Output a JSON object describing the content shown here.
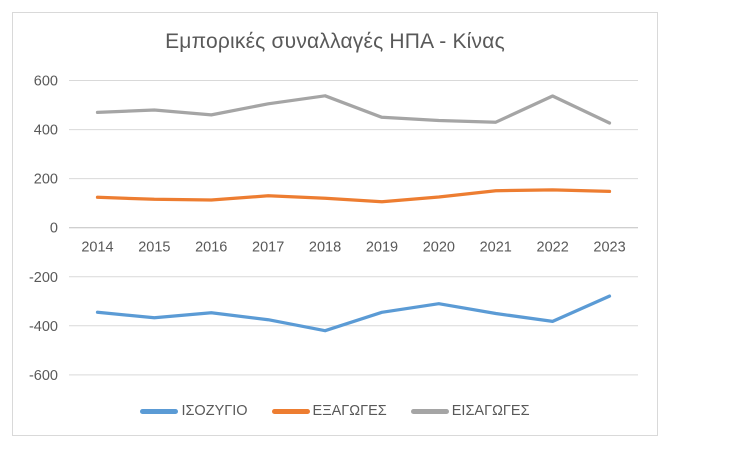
{
  "chart": {
    "background": "#ffffff",
    "border_color": "#d9d9d9",
    "title_color": "#595959",
    "text_color": "#595959",
    "gridline_color": "#d9d9d9",
    "axis_line_color": "#bfbfbf"
  },
  "chart_data": {
    "type": "line",
    "title": "Εμπορικές συναλλαγές ΗΠΑ - Κίνας",
    "xlabel": "",
    "ylabel": "",
    "categories": [
      "2014",
      "2015",
      "2016",
      "2017",
      "2018",
      "2019",
      "2020",
      "2021",
      "2022",
      "2023"
    ],
    "series": [
      {
        "name": "ΙΣΟΖΥΓΙΟ",
        "color": "#5B9BD5",
        "values": [
          -345,
          -367,
          -347,
          -375,
          -420,
          -345,
          -310,
          -350,
          -382,
          -279
        ]
      },
      {
        "name": "ΕΞΑΓΩΓΕΣ",
        "color": "#ED7D31",
        "values": [
          124,
          116,
          113,
          130,
          120,
          106,
          125,
          151,
          154,
          148
        ]
      },
      {
        "name": "ΕΙΣΑΓΩΓΕΣ",
        "color": "#A5A5A5",
        "values": [
          470,
          480,
          460,
          505,
          538,
          450,
          437,
          430,
          537,
          427
        ]
      }
    ],
    "ylim": [
      -600,
      600
    ],
    "yticks": [
      600,
      400,
      200,
      0,
      -200,
      -400,
      -600
    ],
    "grid": true,
    "legend_position": "bottom"
  }
}
